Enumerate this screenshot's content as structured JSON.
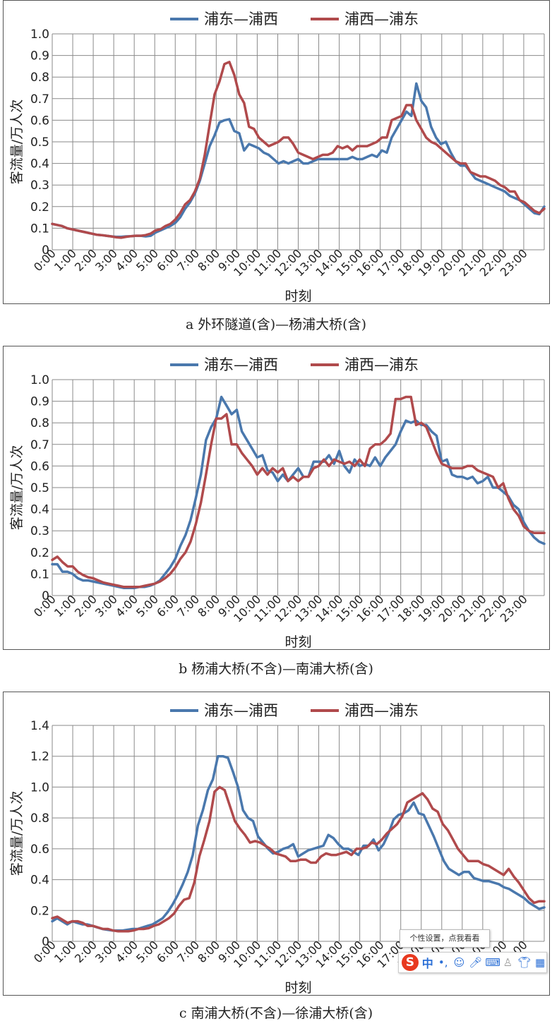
{
  "colors": {
    "blue": "#4a78ad",
    "red": "#b04a4c",
    "grid": "#8a8a8a"
  },
  "chart_data": [
    {
      "type": "line",
      "caption": "a 外环隧道(含)—杨浦大桥(含)",
      "ylabel": "客流量/万人次",
      "xlabel": "时刻",
      "ylim": [
        0,
        1.0
      ],
      "yticks": [
        0,
        0.1,
        0.2,
        0.3,
        0.4,
        0.5,
        0.6,
        0.7,
        0.8,
        0.9,
        1.0
      ],
      "ytick_labels": [
        "0",
        "0.1",
        "0.2",
        "0.3",
        "0.4",
        "0.5",
        "0.6",
        "0.7",
        "0.8",
        "0.9",
        "1.0"
      ],
      "xticks": [
        "0:00",
        "1:00",
        "2:00",
        "3:00",
        "4:00",
        "5:00",
        "6:00",
        "7:00",
        "8:00",
        "9:00",
        "10:00",
        "11:00",
        "12:00",
        "13:00",
        "14:00",
        "15:00",
        "16:00",
        "17:00",
        "18:00",
        "19:00",
        "20:00",
        "21:00",
        "22:00",
        "23:00"
      ],
      "grid": true,
      "legend": "top",
      "series": [
        {
          "name": "浦东—浦西",
          "color": "#4a78ad",
          "values": [
            0.12,
            0.115,
            0.11,
            0.1,
            0.095,
            0.09,
            0.085,
            0.08,
            0.075,
            0.07,
            0.068,
            0.065,
            0.062,
            0.06,
            0.06,
            0.062,
            0.063,
            0.065,
            0.065,
            0.062,
            0.065,
            0.08,
            0.09,
            0.1,
            0.11,
            0.125,
            0.15,
            0.19,
            0.22,
            0.26,
            0.32,
            0.4,
            0.48,
            0.53,
            0.59,
            0.6,
            0.605,
            0.55,
            0.54,
            0.46,
            0.49,
            0.48,
            0.47,
            0.45,
            0.44,
            0.42,
            0.4,
            0.41,
            0.4,
            0.41,
            0.42,
            0.4,
            0.4,
            0.41,
            0.42,
            0.42,
            0.42,
            0.42,
            0.42,
            0.42,
            0.42,
            0.43,
            0.42,
            0.42,
            0.43,
            0.44,
            0.43,
            0.46,
            0.45,
            0.52,
            0.56,
            0.6,
            0.64,
            0.62,
            0.77,
            0.69,
            0.66,
            0.57,
            0.52,
            0.49,
            0.5,
            0.45,
            0.41,
            0.39,
            0.39,
            0.36,
            0.33,
            0.32,
            0.31,
            0.3,
            0.29,
            0.28,
            0.27,
            0.25,
            0.24,
            0.23,
            0.21,
            0.19,
            0.17,
            0.165,
            0.2
          ]
        },
        {
          "name": "浦西—浦东",
          "color": "#b04a4c",
          "values": [
            0.12,
            0.115,
            0.11,
            0.1,
            0.095,
            0.09,
            0.085,
            0.08,
            0.075,
            0.07,
            0.068,
            0.065,
            0.062,
            0.058,
            0.056,
            0.06,
            0.063,
            0.065,
            0.065,
            0.068,
            0.075,
            0.09,
            0.095,
            0.11,
            0.12,
            0.14,
            0.17,
            0.21,
            0.23,
            0.27,
            0.33,
            0.44,
            0.58,
            0.72,
            0.78,
            0.86,
            0.87,
            0.81,
            0.72,
            0.68,
            0.57,
            0.56,
            0.52,
            0.5,
            0.48,
            0.49,
            0.5,
            0.52,
            0.52,
            0.49,
            0.45,
            0.44,
            0.43,
            0.42,
            0.43,
            0.44,
            0.44,
            0.45,
            0.48,
            0.47,
            0.48,
            0.46,
            0.48,
            0.48,
            0.48,
            0.49,
            0.5,
            0.52,
            0.52,
            0.6,
            0.61,
            0.62,
            0.67,
            0.67,
            0.6,
            0.56,
            0.52,
            0.5,
            0.49,
            0.47,
            0.45,
            0.43,
            0.41,
            0.4,
            0.4,
            0.36,
            0.35,
            0.34,
            0.34,
            0.33,
            0.32,
            0.3,
            0.29,
            0.27,
            0.27,
            0.23,
            0.22,
            0.2,
            0.18,
            0.17,
            0.19
          ]
        }
      ]
    },
    {
      "type": "line",
      "caption": "b 杨浦大桥(不含)—南浦大桥(含)",
      "ylabel": "客流量/万人次",
      "xlabel": "时刻",
      "ylim": [
        0,
        1.0
      ],
      "yticks": [
        0,
        0.1,
        0.2,
        0.3,
        0.4,
        0.5,
        0.6,
        0.7,
        0.8,
        0.9,
        1.0
      ],
      "ytick_labels": [
        "0",
        "0.1",
        "0.2",
        "0.3",
        "0.4",
        "0.5",
        "0.6",
        "0.7",
        "0.8",
        "0.9",
        "1.0"
      ],
      "xticks": [
        "0:00",
        "1:00",
        "2:00",
        "3:00",
        "4:00",
        "5:00",
        "6:00",
        "7:00",
        "8:00",
        "9:00",
        "10:00",
        "11:00",
        "12:00",
        "13:00",
        "14:00",
        "15:00",
        "16:00",
        "17:00",
        "18:00",
        "19:00",
        "20:00",
        "21:00",
        "22:00",
        "23:00"
      ],
      "grid": true,
      "legend": "top",
      "series": [
        {
          "name": "浦东—浦西",
          "color": "#4a78ad",
          "values": [
            0.145,
            0.145,
            0.11,
            0.11,
            0.1,
            0.08,
            0.07,
            0.07,
            0.065,
            0.06,
            0.055,
            0.05,
            0.045,
            0.04,
            0.035,
            0.035,
            0.035,
            0.04,
            0.04,
            0.045,
            0.055,
            0.07,
            0.1,
            0.13,
            0.17,
            0.23,
            0.28,
            0.35,
            0.45,
            0.56,
            0.72,
            0.78,
            0.82,
            0.92,
            0.88,
            0.84,
            0.86,
            0.76,
            0.72,
            0.68,
            0.64,
            0.65,
            0.58,
            0.57,
            0.53,
            0.56,
            0.53,
            0.56,
            0.59,
            0.55,
            0.55,
            0.62,
            0.62,
            0.62,
            0.65,
            0.61,
            0.67,
            0.6,
            0.57,
            0.63,
            0.6,
            0.61,
            0.6,
            0.64,
            0.6,
            0.64,
            0.67,
            0.7,
            0.76,
            0.81,
            0.8,
            0.81,
            0.79,
            0.79,
            0.76,
            0.74,
            0.62,
            0.63,
            0.56,
            0.55,
            0.55,
            0.54,
            0.55,
            0.52,
            0.53,
            0.55,
            0.5,
            0.5,
            0.48,
            0.46,
            0.42,
            0.4,
            0.34,
            0.3,
            0.27,
            0.25,
            0.24
          ]
        },
        {
          "name": "浦西—浦东",
          "color": "#b04a4c",
          "values": [
            0.165,
            0.18,
            0.155,
            0.135,
            0.135,
            0.11,
            0.095,
            0.085,
            0.08,
            0.07,
            0.06,
            0.055,
            0.05,
            0.045,
            0.04,
            0.04,
            0.04,
            0.04,
            0.045,
            0.05,
            0.055,
            0.065,
            0.08,
            0.1,
            0.13,
            0.17,
            0.2,
            0.25,
            0.33,
            0.43,
            0.56,
            0.7,
            0.82,
            0.82,
            0.84,
            0.7,
            0.7,
            0.66,
            0.63,
            0.6,
            0.56,
            0.59,
            0.56,
            0.59,
            0.57,
            0.59,
            0.53,
            0.55,
            0.53,
            0.55,
            0.55,
            0.59,
            0.6,
            0.63,
            0.6,
            0.63,
            0.62,
            0.61,
            0.62,
            0.6,
            0.63,
            0.6,
            0.68,
            0.7,
            0.7,
            0.72,
            0.75,
            0.91,
            0.91,
            0.92,
            0.92,
            0.79,
            0.8,
            0.78,
            0.72,
            0.66,
            0.61,
            0.6,
            0.59,
            0.59,
            0.59,
            0.6,
            0.6,
            0.58,
            0.57,
            0.56,
            0.55,
            0.5,
            0.52,
            0.45,
            0.4,
            0.37,
            0.32,
            0.3,
            0.29,
            0.29,
            0.29
          ]
        }
      ]
    },
    {
      "type": "line",
      "caption": "c 南浦大桥(不含)—徐浦大桥(含)",
      "ylabel": "客流量/万人次",
      "xlabel": "时刻",
      "ylim": [
        0,
        1.4
      ],
      "yticks": [
        0,
        0.2,
        0.4,
        0.6,
        0.8,
        1.0,
        1.2,
        1.4
      ],
      "ytick_labels": [
        "0",
        "0.2",
        "0.4",
        "0.6",
        "0.8",
        "1.0",
        "1.2",
        "1.4"
      ],
      "xticks": [
        "0:00",
        "1:00",
        "2:00",
        "3:00",
        "4:00",
        "5:00",
        "6:00",
        "7:00",
        "8:00",
        "9:00",
        "10:00",
        "11:00",
        "12:00",
        "13:00",
        "14:00",
        "15:00",
        "16:00",
        "17:00",
        "18:00",
        "19:00",
        "20:00",
        "21:00",
        "22:00",
        "23:00"
      ],
      "grid": true,
      "legend": "top",
      "series": [
        {
          "name": "浦东—浦西",
          "color": "#4a78ad",
          "values": [
            0.13,
            0.15,
            0.13,
            0.11,
            0.13,
            0.12,
            0.11,
            0.11,
            0.1,
            0.09,
            0.08,
            0.075,
            0.07,
            0.07,
            0.07,
            0.075,
            0.08,
            0.08,
            0.09,
            0.1,
            0.11,
            0.13,
            0.15,
            0.19,
            0.24,
            0.3,
            0.37,
            0.45,
            0.56,
            0.75,
            0.85,
            0.98,
            1.05,
            1.2,
            1.2,
            1.19,
            1.1,
            1.0,
            0.85,
            0.8,
            0.78,
            0.68,
            0.64,
            0.6,
            0.57,
            0.58,
            0.6,
            0.61,
            0.63,
            0.55,
            0.57,
            0.59,
            0.6,
            0.61,
            0.62,
            0.69,
            0.67,
            0.63,
            0.6,
            0.6,
            0.58,
            0.56,
            0.62,
            0.62,
            0.66,
            0.59,
            0.63,
            0.7,
            0.79,
            0.82,
            0.83,
            0.85,
            0.9,
            0.83,
            0.82,
            0.75,
            0.68,
            0.6,
            0.52,
            0.47,
            0.45,
            0.43,
            0.45,
            0.45,
            0.41,
            0.4,
            0.39,
            0.39,
            0.38,
            0.37,
            0.35,
            0.34,
            0.32,
            0.3,
            0.28,
            0.25,
            0.23,
            0.21,
            0.22
          ]
        },
        {
          "name": "浦西—浦东",
          "color": "#b04a4c",
          "values": [
            0.15,
            0.16,
            0.14,
            0.12,
            0.13,
            0.13,
            0.12,
            0.1,
            0.1,
            0.09,
            0.08,
            0.08,
            0.07,
            0.065,
            0.065,
            0.065,
            0.07,
            0.08,
            0.08,
            0.085,
            0.1,
            0.11,
            0.13,
            0.15,
            0.18,
            0.23,
            0.27,
            0.28,
            0.38,
            0.55,
            0.66,
            0.78,
            0.97,
            1.0,
            0.98,
            0.88,
            0.78,
            0.73,
            0.69,
            0.64,
            0.65,
            0.64,
            0.62,
            0.6,
            0.57,
            0.56,
            0.55,
            0.52,
            0.52,
            0.53,
            0.53,
            0.51,
            0.51,
            0.55,
            0.57,
            0.56,
            0.56,
            0.57,
            0.58,
            0.56,
            0.6,
            0.6,
            0.61,
            0.64,
            0.63,
            0.66,
            0.7,
            0.73,
            0.76,
            0.81,
            0.9,
            0.92,
            0.94,
            0.96,
            0.92,
            0.86,
            0.84,
            0.76,
            0.72,
            0.66,
            0.6,
            0.56,
            0.52,
            0.52,
            0.52,
            0.5,
            0.49,
            0.47,
            0.45,
            0.43,
            0.47,
            0.42,
            0.38,
            0.33,
            0.28,
            0.25,
            0.26,
            0.26
          ]
        }
      ]
    }
  ],
  "ime": {
    "tooltip": "个性设置，点我看看",
    "logo": "S",
    "mode": "中",
    "punct": "•,"
  }
}
